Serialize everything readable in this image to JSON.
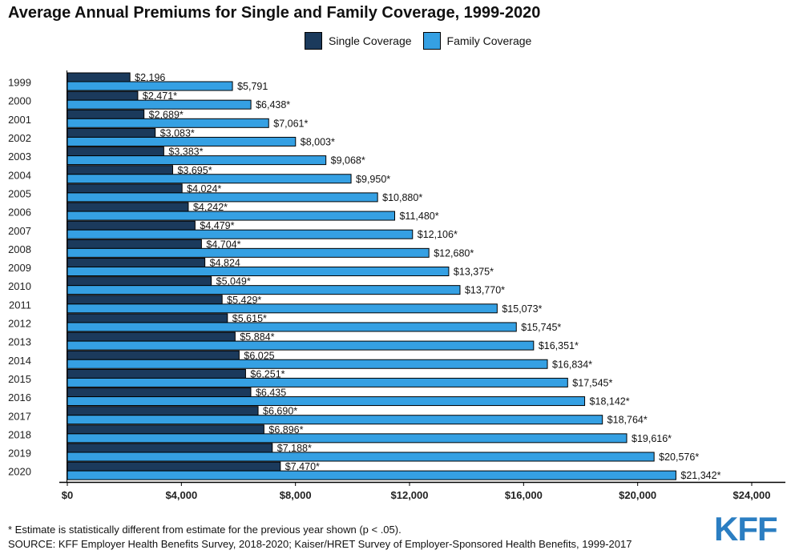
{
  "chart_data": {
    "type": "bar",
    "orientation": "horizontal",
    "title": "Average Annual Premiums for Single and Family Coverage, 1999-2020",
    "categories": [
      "1999",
      "2000",
      "2001",
      "2002",
      "2003",
      "2004",
      "2005",
      "2006",
      "2007",
      "2008",
      "2009",
      "2010",
      "2011",
      "2012",
      "2013",
      "2014",
      "2015",
      "2016",
      "2017",
      "2018",
      "2019",
      "2020"
    ],
    "series": [
      {
        "name": "Single Coverage",
        "color": "#1b3a5c",
        "values": [
          2196,
          2471,
          2689,
          3083,
          3383,
          3695,
          4024,
          4242,
          4479,
          4704,
          4824,
          5049,
          5429,
          5615,
          5884,
          6025,
          6251,
          6435,
          6690,
          6896,
          7188,
          7470
        ],
        "labels": [
          "$2,196",
          "$2,471*",
          "$2,689*",
          "$3,083*",
          "$3,383*",
          "$3,695*",
          "$4,024*",
          "$4,242*",
          "$4,479*",
          "$4,704*",
          "$4,824",
          "$5,049*",
          "$5,429*",
          "$5,615*",
          "$5,884*",
          "$6,025",
          "$6,251*",
          "$6,435",
          "$6,690*",
          "$6,896*",
          "$7,188*",
          "$7,470*"
        ]
      },
      {
        "name": "Family Coverage",
        "color": "#35a0e3",
        "values": [
          5791,
          6438,
          7061,
          8003,
          9068,
          9950,
          10880,
          11480,
          12106,
          12680,
          13375,
          13770,
          15073,
          15745,
          16351,
          16834,
          17545,
          18142,
          18764,
          19616,
          20576,
          21342
        ],
        "labels": [
          "$5,791",
          "$6,438*",
          "$7,061*",
          "$8,003*",
          "$9,068*",
          "$9,950*",
          "$10,880*",
          "$11,480*",
          "$12,106*",
          "$12,680*",
          "$13,375*",
          "$13,770*",
          "$15,073*",
          "$15,745*",
          "$16,351*",
          "$16,834*",
          "$17,545*",
          "$18,142*",
          "$18,764*",
          "$19,616*",
          "$20,576*",
          "$21,342*"
        ]
      }
    ],
    "x_ticks": [
      0,
      4000,
      8000,
      12000,
      16000,
      20000,
      24000
    ],
    "x_tick_labels": [
      "$0",
      "$4,000",
      "$8,000",
      "$12,000",
      "$16,000",
      "$20,000",
      "$24,000"
    ],
    "xlim": [
      0,
      24000
    ],
    "grid": false,
    "legend_position": "top"
  },
  "footnote": "* Estimate is statistically different from estimate for the previous year shown (p < .05).",
  "source": "SOURCE: KFF Employer Health Benefits Survey, 2018-2020; Kaiser/HRET Survey of Employer-Sponsored Health Benefits, 1999-2017",
  "logo": {
    "text": "KFF",
    "color": "#2b7ec2"
  }
}
